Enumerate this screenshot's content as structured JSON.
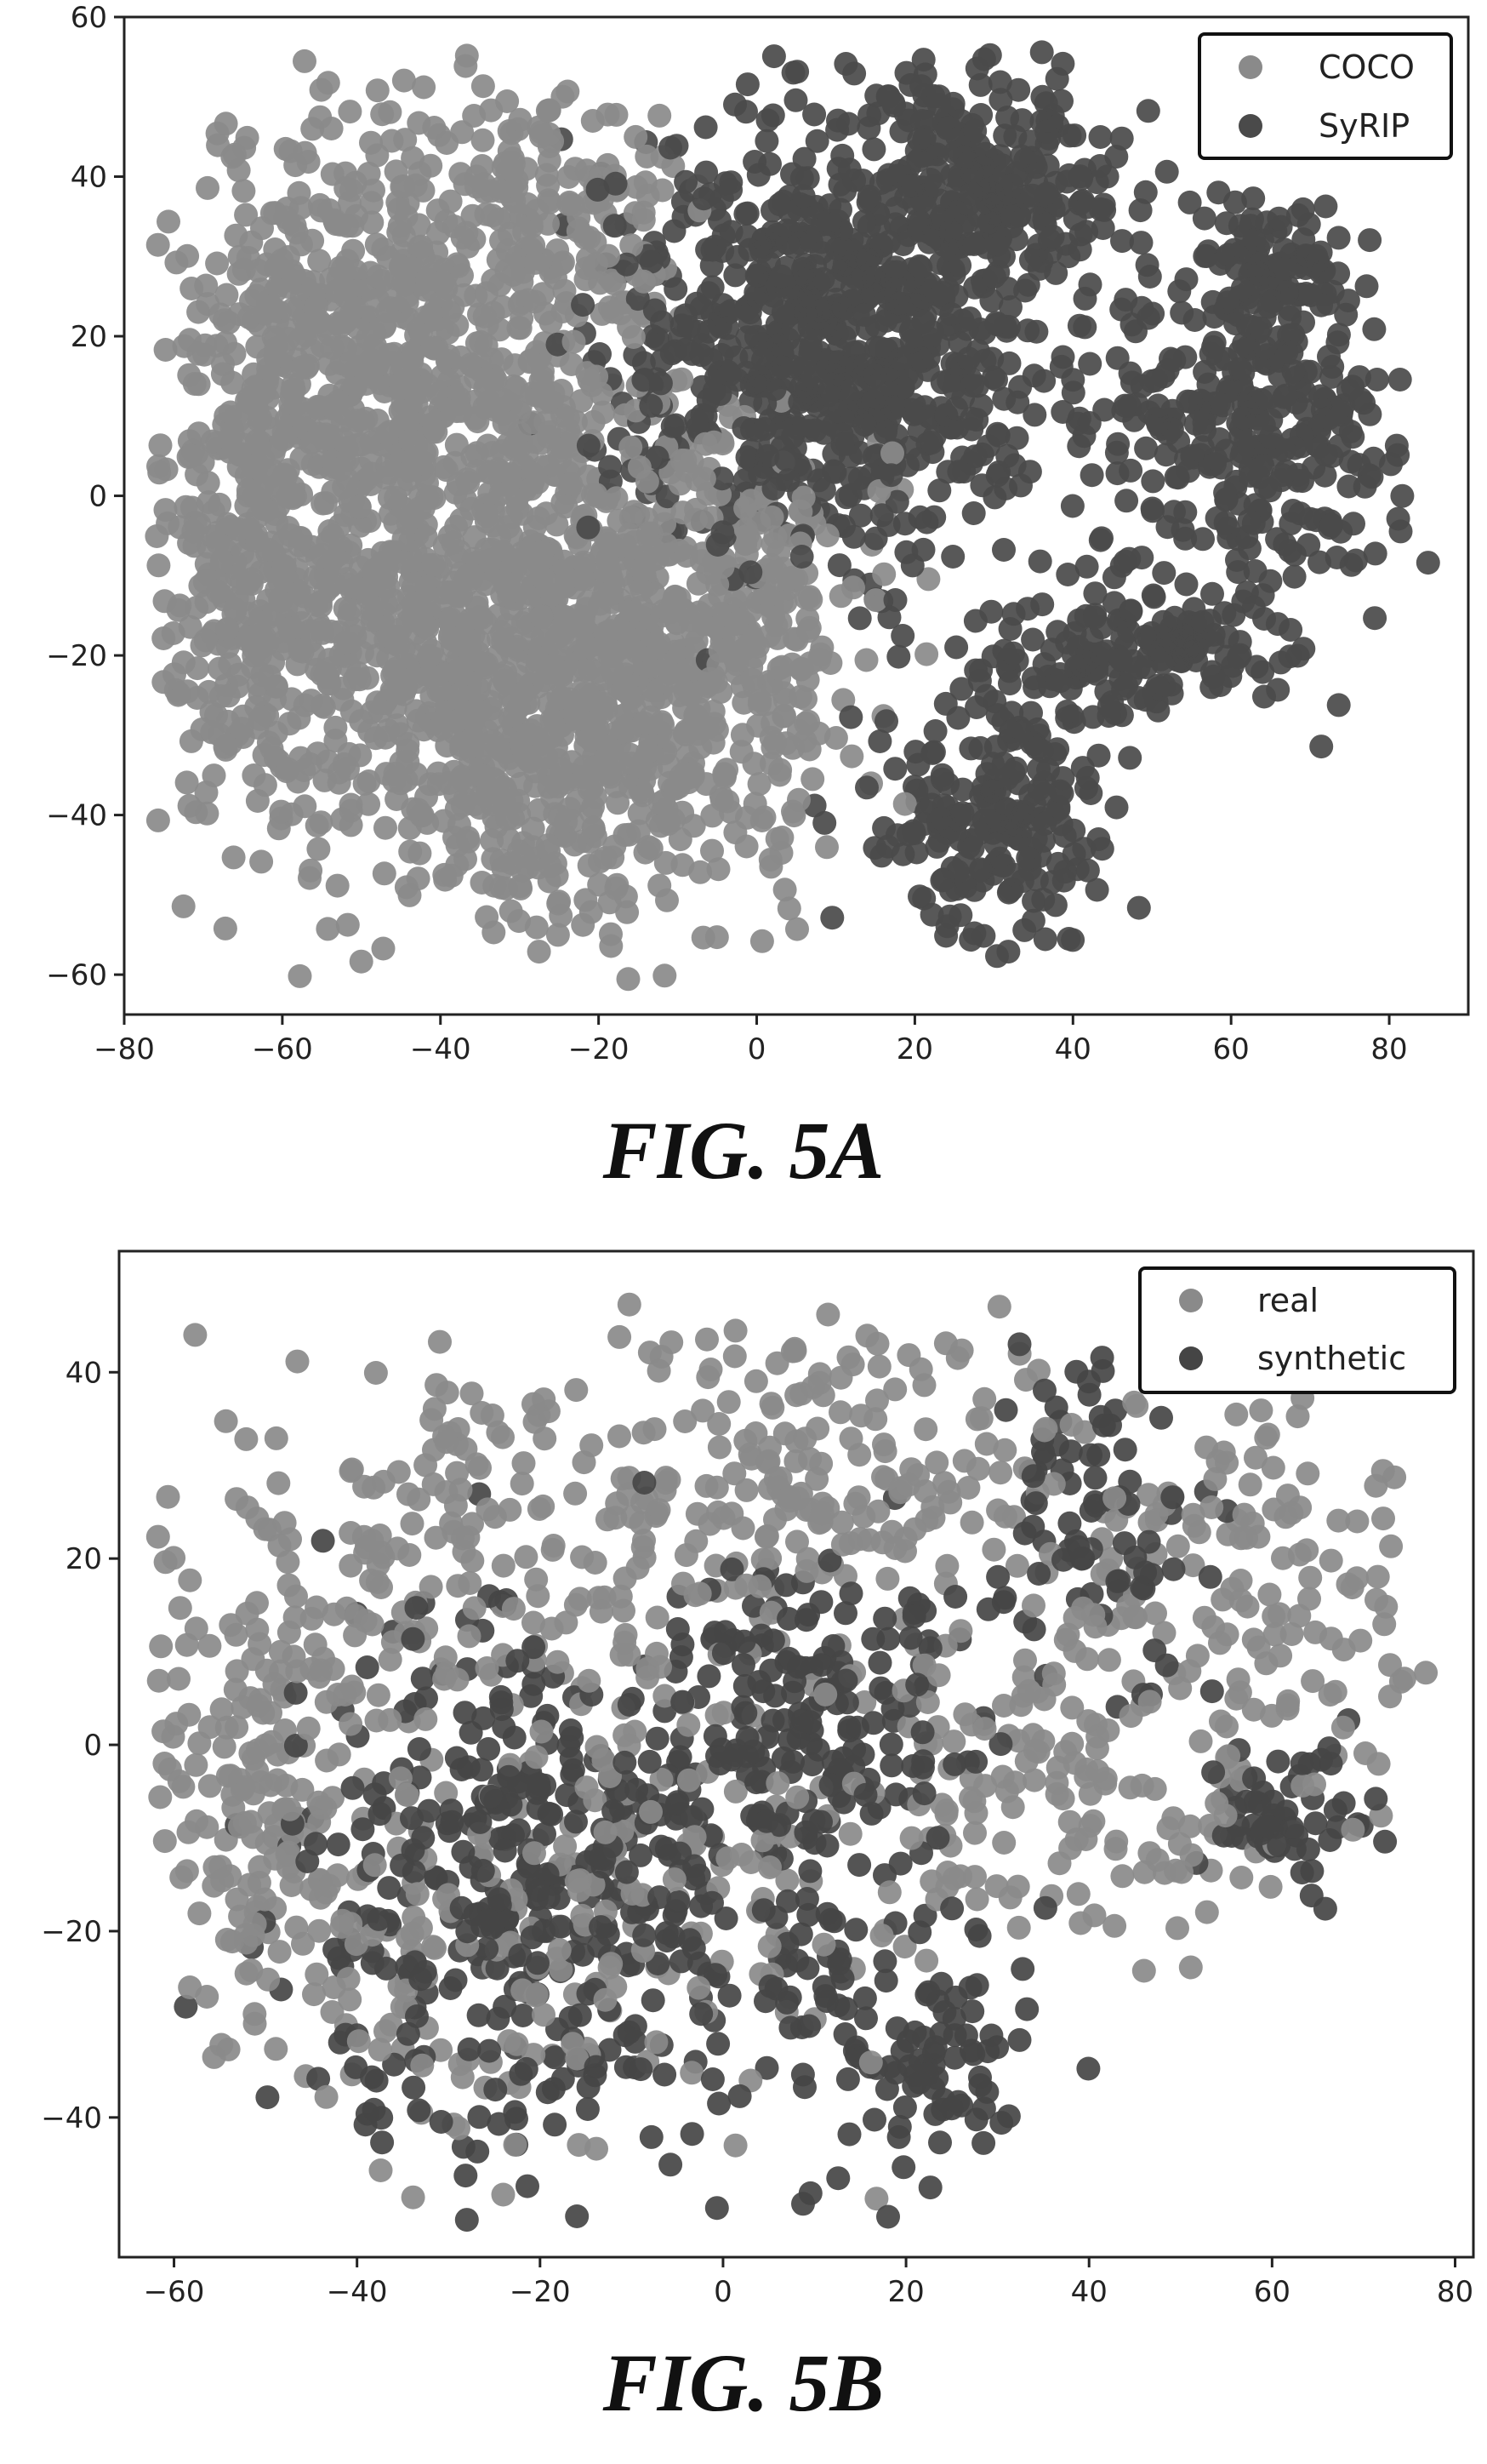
{
  "chart_data": [
    {
      "type": "scatter",
      "caption": "FIG. 5A",
      "xlim": [
        -80,
        90
      ],
      "ylim": [
        -65,
        60
      ],
      "xticks": [
        -80,
        -60,
        -40,
        -20,
        0,
        20,
        40,
        60,
        80
      ],
      "yticks": [
        -60,
        -40,
        -20,
        0,
        20,
        40,
        60
      ],
      "grid": false,
      "legend_position": "top-right",
      "series": [
        {
          "name": "COCO",
          "color": "#8a8a8a",
          "clusters": [
            {
              "cx": -50,
              "cy": 20,
              "sx": 11,
              "sy": 14,
              "n": 520
            },
            {
              "cx": -40,
              "cy": -20,
              "sx": 15,
              "sy": 13,
              "n": 640
            },
            {
              "cx": -20,
              "cy": -30,
              "sx": 12,
              "sy": 13,
              "n": 460
            },
            {
              "cx": -25,
              "cy": 35,
              "sx": 8,
              "sy": 9,
              "n": 170
            },
            {
              "cx": -65,
              "cy": -5,
              "sx": 5,
              "sy": 15,
              "n": 230
            },
            {
              "cx": -5,
              "cy": -15,
              "sx": 10,
              "sy": 12,
              "n": 260
            },
            {
              "cx": -30,
              "cy": 5,
              "sx": 12,
              "sy": 10,
              "n": 260
            }
          ]
        },
        {
          "name": "SyRIP",
          "color": "#4a4a4a",
          "clusters": [
            {
              "cx": 10,
              "cy": 20,
              "sx": 14,
              "sy": 14,
              "n": 820
            },
            {
              "cx": 30,
              "cy": 40,
              "sx": 9,
              "sy": 7,
              "n": 220
            },
            {
              "cx": 62,
              "cy": 8,
              "sx": 10,
              "sy": 11,
              "n": 320
            },
            {
              "cx": 30,
              "cy": -40,
              "sx": 7,
              "sy": 8,
              "n": 210
            },
            {
              "cx": 48,
              "cy": -20,
              "sx": 10,
              "sy": 5,
              "n": 160
            },
            {
              "cx": 65,
              "cy": 28,
              "sx": 5,
              "sy": 5,
              "n": 90
            }
          ]
        }
      ]
    },
    {
      "type": "scatter",
      "caption": "FIG. 5B",
      "xlim": [
        -66,
        82
      ],
      "ylim": [
        -55,
        53
      ],
      "xticks": [
        -60,
        -40,
        -20,
        0,
        20,
        40,
        60,
        80
      ],
      "yticks": [
        -40,
        -20,
        0,
        20,
        40
      ],
      "grid": false,
      "legend_position": "top-right",
      "series": [
        {
          "name": "real",
          "color": "#8a8a8a",
          "clusters": [
            {
              "cx": -50,
              "cy": -5,
              "sx": 7,
              "sy": 13,
              "n": 180
            },
            {
              "cx": -30,
              "cy": 20,
              "sx": 12,
              "sy": 10,
              "n": 170
            },
            {
              "cx": 10,
              "cy": 30,
              "sx": 14,
              "sy": 9,
              "n": 200
            },
            {
              "cx": 55,
              "cy": 15,
              "sx": 11,
              "sy": 10,
              "n": 150
            },
            {
              "cx": 35,
              "cy": -5,
              "sx": 14,
              "sy": 10,
              "n": 150
            },
            {
              "cx": -5,
              "cy": -10,
              "sx": 15,
              "sy": 15,
              "n": 150
            },
            {
              "cx": -30,
              "cy": -25,
              "sx": 10,
              "sy": 10,
              "n": 90
            }
          ]
        },
        {
          "name": "synthetic",
          "color": "#454545",
          "clusters": [
            {
              "cx": -22,
              "cy": -15,
              "sx": 12,
              "sy": 15,
              "n": 380
            },
            {
              "cx": 12,
              "cy": 8,
              "sx": 7,
              "sy": 8,
              "n": 90
            },
            {
              "cx": 22,
              "cy": -33,
              "sx": 6,
              "sy": 6,
              "n": 90
            },
            {
              "cx": 40,
              "cy": 25,
              "sx": 6,
              "sy": 8,
              "n": 80
            },
            {
              "cx": 60,
              "cy": -8,
              "sx": 5,
              "sy": 4,
              "n": 60
            },
            {
              "cx": 5,
              "cy": -10,
              "sx": 12,
              "sy": 14,
              "n": 150
            }
          ]
        }
      ]
    }
  ]
}
